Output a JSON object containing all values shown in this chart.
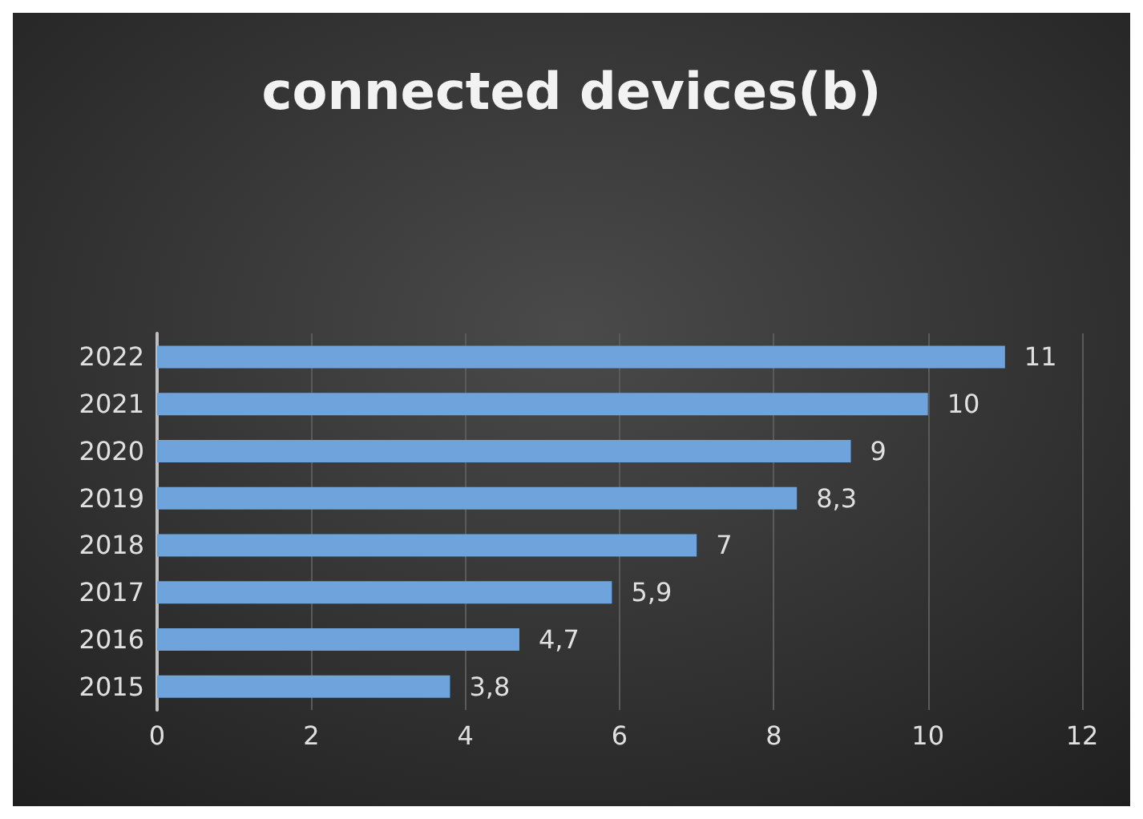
{
  "chart_data": {
    "type": "bar",
    "orientation": "horizontal",
    "title": "connected devices(b)",
    "categories": [
      "2022",
      "2021",
      "2020",
      "2019",
      "2018",
      "2017",
      "2016",
      "2015"
    ],
    "values": [
      11,
      10,
      9,
      8.3,
      7,
      5.9,
      4.7,
      3.8
    ],
    "value_labels": [
      "11",
      "10",
      "9",
      "8,3",
      "7",
      "5,9",
      "4,7",
      "3,8"
    ],
    "color": "#6fa3dc",
    "xlim": [
      0,
      12
    ],
    "xticks": [
      0,
      2,
      4,
      6,
      8,
      10,
      12
    ],
    "grid": "x"
  }
}
